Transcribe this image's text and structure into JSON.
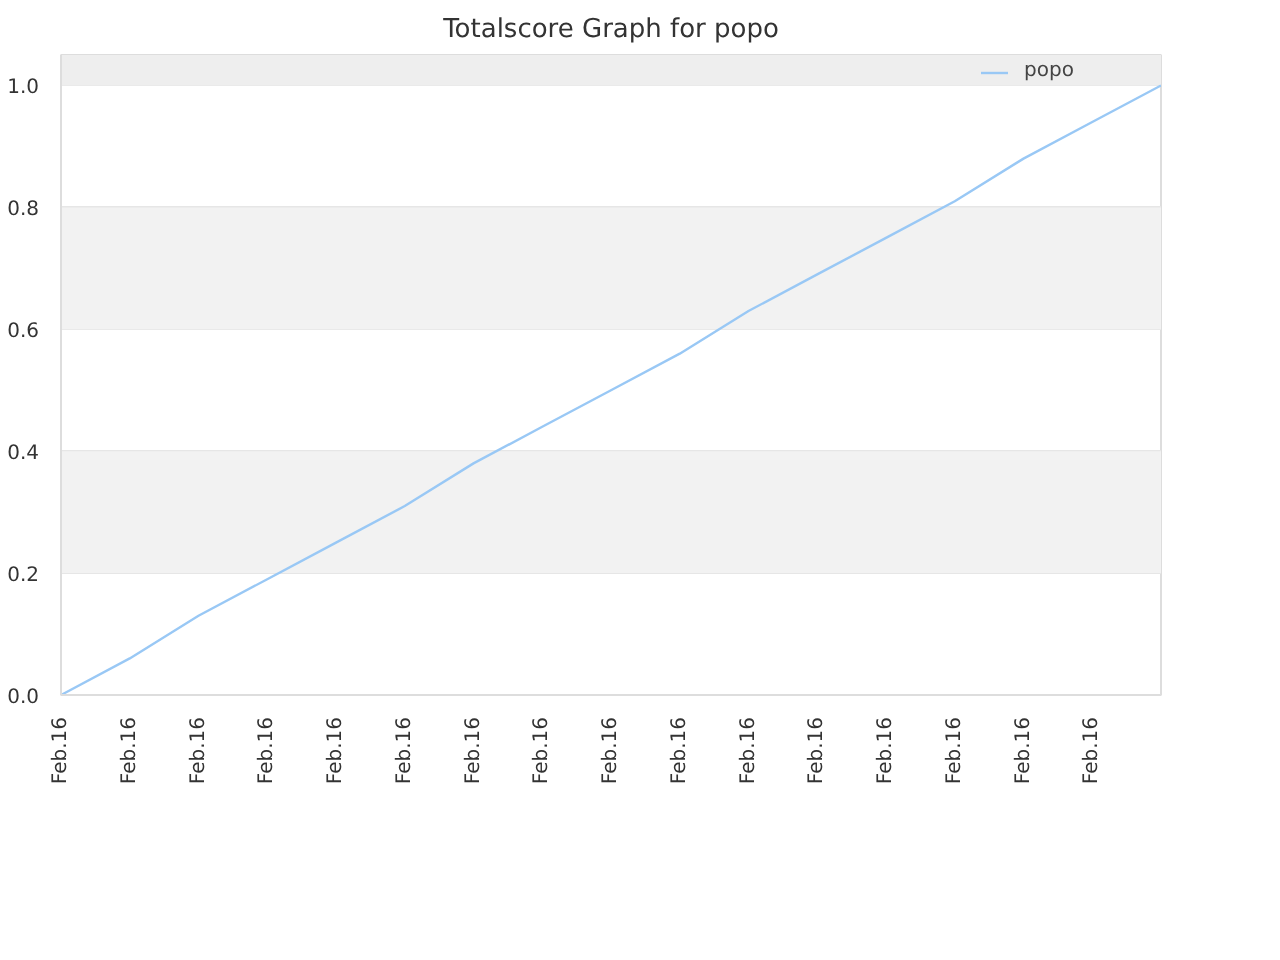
{
  "chart_data": {
    "type": "line",
    "title": "Totalscore Graph for popo",
    "categories": [
      "Feb.16",
      "Feb.16",
      "Feb.16",
      "Feb.16",
      "Feb.16",
      "Feb.16",
      "Feb.16",
      "Feb.16",
      "Feb.16",
      "Feb.16",
      "Feb.16",
      "Feb.16",
      "Feb.16",
      "Feb.16",
      "Feb.16",
      "Feb.16",
      null
    ],
    "series": [
      {
        "name": "popo",
        "color": "#99c8f5",
        "values": [
          0,
          0.06,
          0.13,
          0.19,
          0.25,
          0.31,
          0.38,
          0.44,
          0.5,
          0.56,
          0.63,
          0.69,
          0.75,
          0.81,
          0.88,
          0.94,
          1
        ]
      }
    ],
    "ylim": [
      0,
      1.05
    ],
    "yticks": [
      {
        "value": 0,
        "label": "0.0"
      },
      0.2,
      0.4,
      0.6,
      0.8,
      {
        "value": 1,
        "label": "1.0"
      }
    ],
    "bands": [
      {
        "axis": "y",
        "from": 0.2,
        "to": 0.4,
        "color": "#f2f2f2"
      },
      {
        "axis": "y",
        "from": 0.6,
        "to": 0.8,
        "color": "#f2f2f2"
      },
      {
        "axis": "y",
        "from": 1.0,
        "to": 1.05,
        "color": "#eeeeee"
      }
    ],
    "grid": "y",
    "legend": "top right",
    "marker": "none",
    "line_style": "solid"
  }
}
